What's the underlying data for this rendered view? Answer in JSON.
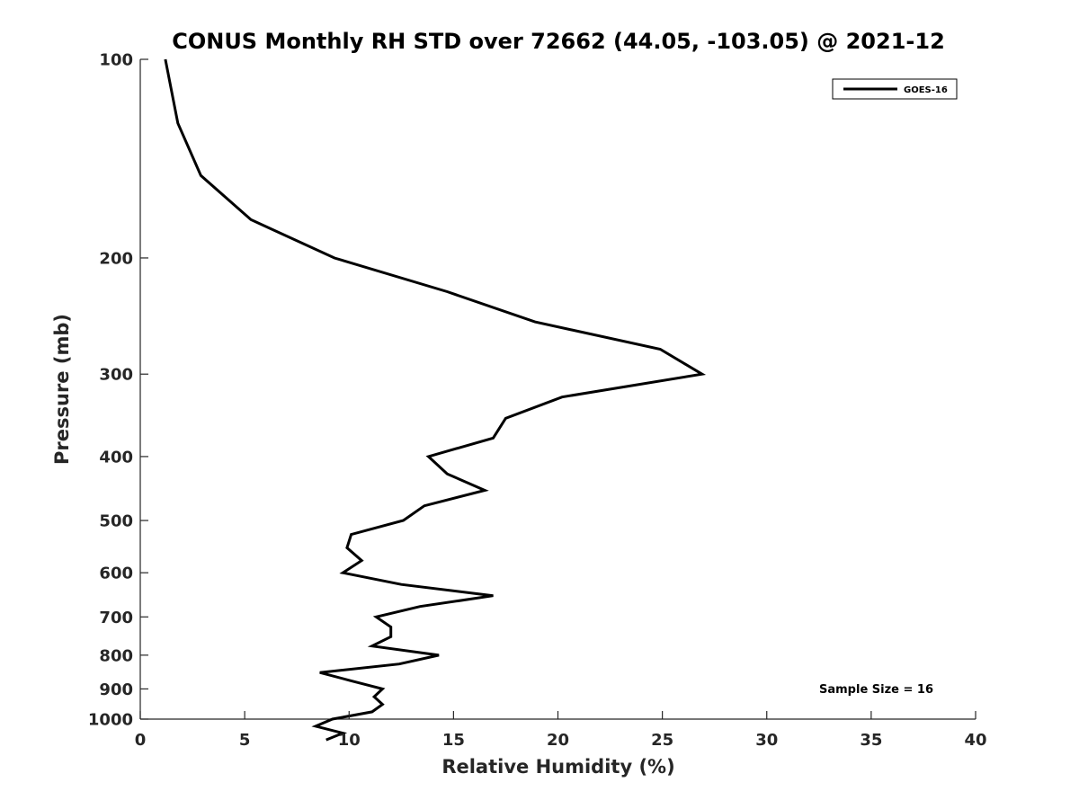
{
  "chart_data": {
    "type": "line",
    "title": "CONUS Monthly RH STD over 72662 (44.05, -103.05) @ 2021-12",
    "xlabel": "Relative Humidity (%)",
    "ylabel": "Pressure (mb)",
    "xlim": [
      0,
      40
    ],
    "ylim": [
      100,
      1000
    ],
    "y_scale": "log",
    "y_reversed": true,
    "x_ticks": [
      "0",
      "5",
      "10",
      "15",
      "20",
      "25",
      "30",
      "35",
      "40"
    ],
    "y_ticks": [
      "100",
      "200",
      "300",
      "400",
      "500",
      "600",
      "700",
      "800",
      "900",
      "1000"
    ],
    "grid": false,
    "legend_position": "top-right",
    "series": [
      {
        "name": "GOES-16",
        "color": "#000000",
        "points": [
          {
            "x": 1.2,
            "y": 100
          },
          {
            "x": 1.8,
            "y": 125
          },
          {
            "x": 2.9,
            "y": 150
          },
          {
            "x": 5.3,
            "y": 175
          },
          {
            "x": 9.3,
            "y": 200
          },
          {
            "x": 14.7,
            "y": 225
          },
          {
            "x": 18.9,
            "y": 250
          },
          {
            "x": 24.9,
            "y": 275
          },
          {
            "x": 26.9,
            "y": 300
          },
          {
            "x": 20.2,
            "y": 325
          },
          {
            "x": 17.5,
            "y": 350
          },
          {
            "x": 16.9,
            "y": 375
          },
          {
            "x": 13.8,
            "y": 400
          },
          {
            "x": 14.7,
            "y": 425
          },
          {
            "x": 16.5,
            "y": 450
          },
          {
            "x": 13.6,
            "y": 475
          },
          {
            "x": 12.6,
            "y": 500
          },
          {
            "x": 10.1,
            "y": 525
          },
          {
            "x": 9.9,
            "y": 550
          },
          {
            "x": 10.6,
            "y": 575
          },
          {
            "x": 9.7,
            "y": 600
          },
          {
            "x": 12.5,
            "y": 625
          },
          {
            "x": 16.9,
            "y": 650
          },
          {
            "x": 13.4,
            "y": 675
          },
          {
            "x": 11.3,
            "y": 700
          },
          {
            "x": 12.0,
            "y": 725
          },
          {
            "x": 12.0,
            "y": 750
          },
          {
            "x": 11.1,
            "y": 775
          },
          {
            "x": 14.3,
            "y": 800
          },
          {
            "x": 12.4,
            "y": 825
          },
          {
            "x": 8.6,
            "y": 850
          },
          {
            "x": 10.1,
            "y": 875
          },
          {
            "x": 11.6,
            "y": 900
          },
          {
            "x": 11.2,
            "y": 925
          },
          {
            "x": 11.6,
            "y": 950
          },
          {
            "x": 11.1,
            "y": 975
          },
          {
            "x": 9.2,
            "y": 1000
          },
          {
            "x": 8.4,
            "y": 1025
          },
          {
            "x": 9.7,
            "y": 1050
          },
          {
            "x": 8.9,
            "y": 1075
          }
        ]
      }
    ],
    "annotations": [
      "Sample Size = 16"
    ]
  }
}
